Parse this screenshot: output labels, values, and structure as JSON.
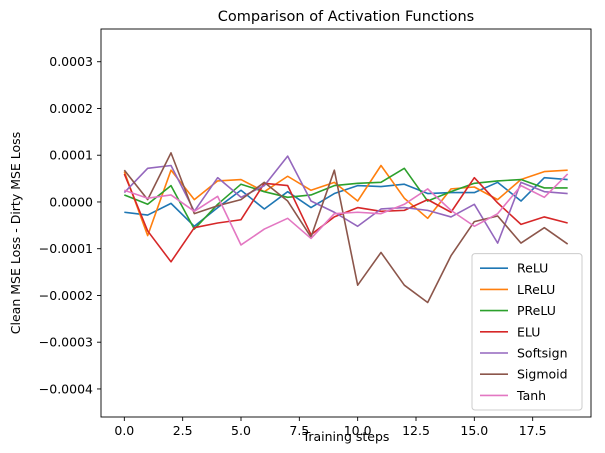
{
  "chart_data": {
    "type": "line",
    "title": "Comparison of Activation Functions",
    "xlabel": "Training steps",
    "ylabel": "Clean MSE Loss - Dirty MSE Loss",
    "xlim": [
      -1,
      20
    ],
    "ylim": [
      -0.00046,
      0.00037
    ],
    "xticks": [
      0,
      2.5,
      5,
      7.5,
      10,
      12.5,
      15,
      17.5
    ],
    "xtick_labels": [
      "0.0",
      "2.5",
      "5.0",
      "7.5",
      "10.0",
      "12.5",
      "15.0",
      "17.5"
    ],
    "yticks": [
      0.0003,
      0.0002,
      0.0001,
      0,
      -0.0001,
      -0.0002,
      -0.0003,
      -0.0004
    ],
    "ytick_labels": [
      "0.0003",
      "0.0002",
      "0.0001",
      "0.0000",
      "−0.0001",
      "−0.0002",
      "−0.0003",
      "−0.0004"
    ],
    "legend_position": "lower-right",
    "grid": false,
    "x": [
      0,
      1,
      2,
      3,
      4,
      5,
      6,
      7,
      8,
      9,
      10,
      11,
      12,
      13,
      14,
      15,
      16,
      17,
      18,
      19
    ],
    "series": [
      {
        "name": "ReLU",
        "color": "#1f77b4",
        "values": [
          -2.2e-05,
          -2.8e-05,
          -3e-06,
          -5.2e-05,
          -1.2e-05,
          2.5e-05,
          -1.5e-05,
          2.2e-05,
          -1.2e-05,
          1.8e-05,
          3.5e-05,
          3.3e-05,
          3.8e-05,
          1.8e-05,
          2e-05,
          2e-05,
          4.2e-05,
          2e-06,
          5.2e-05,
          4.8e-05
        ]
      },
      {
        "name": "LReLU",
        "color": "#ff7f0e",
        "values": [
          6.5e-05,
          -7.2e-05,
          6.8e-05,
          5e-06,
          4.5e-05,
          4.8e-05,
          2.2e-05,
          5.5e-05,
          2.5e-05,
          4.2e-05,
          2e-06,
          7.8e-05,
          8e-06,
          -3.5e-05,
          2.8e-05,
          3.2e-05,
          5e-06,
          4.8e-05,
          6.5e-05,
          6.8e-05
        ]
      },
      {
        "name": "PReLU",
        "color": "#2ca02c",
        "values": [
          1.5e-05,
          -5e-06,
          3.5e-05,
          -5.8e-05,
          -5e-06,
          3.8e-05,
          2.2e-05,
          1e-05,
          1.5e-05,
          3.5e-05,
          4e-05,
          4.2e-05,
          7.2e-05,
          2e-06,
          2.2e-05,
          4e-05,
          4.5e-05,
          4.8e-05,
          3e-05,
          3e-05
        ]
      },
      {
        "name": "ELU",
        "color": "#d62728",
        "values": [
          6e-05,
          -6.2e-05,
          -0.000128,
          -5.5e-05,
          -4.5e-05,
          -3.8e-05,
          4e-05,
          3.5e-05,
          -7e-05,
          -3.2e-05,
          -1.2e-05,
          -2e-05,
          -1.8e-05,
          5e-06,
          -2.2e-05,
          5.2e-05,
          -2e-06,
          -4.8e-05,
          -3.2e-05,
          -4.5e-05
        ]
      },
      {
        "name": "Softsign",
        "color": "#9467bd",
        "values": [
          2e-05,
          7.2e-05,
          7.8e-05,
          -2e-05,
          5.2e-05,
          1e-05,
          3.5e-05,
          9.8e-05,
          2e-06,
          -2.2e-05,
          -5.2e-05,
          -1.5e-05,
          -1.2e-05,
          -1.8e-05,
          -3.2e-05,
          -5e-06,
          -8.8e-05,
          4.2e-05,
          2.2e-05,
          1.8e-05
        ]
      },
      {
        "name": "Sigmoid",
        "color": "#8c564b",
        "values": [
          6.8e-05,
          5e-06,
          0.000105,
          -2.5e-05,
          -8e-06,
          5e-06,
          4.2e-05,
          2e-06,
          -7.5e-05,
          6.8e-05,
          -0.000178,
          -0.000108,
          -0.000178,
          -0.000215,
          -0.000115,
          -4.2e-05,
          -3e-05,
          -8.8e-05,
          -5.5e-05,
          -9e-05
        ]
      },
      {
        "name": "Tanh",
        "color": "#e377c2",
        "values": [
          2.5e-05,
          8e-06,
          1.5e-05,
          -2e-05,
          1.2e-05,
          -9.2e-05,
          -5.8e-05,
          -3.5e-05,
          -7.8e-05,
          -2.5e-05,
          -2.2e-05,
          -2.5e-05,
          -5e-06,
          2.8e-05,
          -1.8e-05,
          -5.2e-05,
          -2.5e-05,
          3.5e-05,
          1e-05,
          6e-05
        ]
      }
    ]
  }
}
